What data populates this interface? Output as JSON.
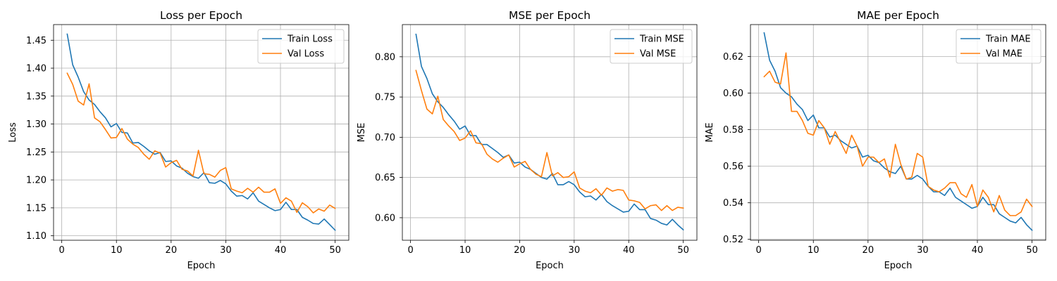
{
  "colors": {
    "train": "#1f77b4",
    "val": "#ff7f0e",
    "grid": "#b0b0b0"
  },
  "chart_data": [
    {
      "type": "line",
      "title": "Loss per Epoch",
      "xlabel": "Epoch",
      "ylabel": "Loss",
      "xlim": [
        -1.5,
        52.5
      ],
      "ylim": [
        1.092,
        1.478
      ],
      "xticks": [
        0,
        10,
        20,
        30,
        40,
        50
      ],
      "yticks": [
        1.1,
        1.15,
        1.2,
        1.25,
        1.3,
        1.35,
        1.4,
        1.45
      ],
      "ytick_labels": [
        "1.10",
        "1.15",
        "1.20",
        "1.25",
        "1.30",
        "1.35",
        "1.40",
        "1.45"
      ],
      "grid": true,
      "legend": "upper-right",
      "x": [
        1,
        2,
        3,
        4,
        5,
        6,
        7,
        8,
        9,
        10,
        11,
        12,
        13,
        14,
        15,
        16,
        17,
        18,
        19,
        20,
        21,
        22,
        23,
        24,
        25,
        26,
        27,
        28,
        29,
        30,
        31,
        32,
        33,
        34,
        35,
        36,
        37,
        38,
        39,
        40,
        41,
        42,
        43,
        44,
        45,
        46,
        47,
        48,
        49,
        50
      ],
      "series": [
        {
          "name": "Train Loss",
          "color_key": "train",
          "values": [
            1.461,
            1.406,
            1.384,
            1.358,
            1.343,
            1.335,
            1.322,
            1.311,
            1.295,
            1.301,
            1.285,
            1.284,
            1.266,
            1.267,
            1.26,
            1.252,
            1.246,
            1.249,
            1.233,
            1.234,
            1.225,
            1.221,
            1.212,
            1.206,
            1.203,
            1.213,
            1.195,
            1.194,
            1.199,
            1.193,
            1.18,
            1.171,
            1.172,
            1.166,
            1.177,
            1.162,
            1.156,
            1.15,
            1.145,
            1.147,
            1.16,
            1.147,
            1.147,
            1.133,
            1.128,
            1.122,
            1.121,
            1.13,
            1.12,
            1.11
          ]
        },
        {
          "name": "Val Loss",
          "color_key": "val",
          "values": [
            1.391,
            1.371,
            1.341,
            1.334,
            1.372,
            1.311,
            1.304,
            1.29,
            1.275,
            1.276,
            1.292,
            1.273,
            1.264,
            1.258,
            1.246,
            1.237,
            1.252,
            1.248,
            1.223,
            1.231,
            1.235,
            1.219,
            1.216,
            1.207,
            1.253,
            1.211,
            1.21,
            1.205,
            1.217,
            1.222,
            1.184,
            1.18,
            1.177,
            1.185,
            1.178,
            1.187,
            1.178,
            1.178,
            1.184,
            1.158,
            1.168,
            1.162,
            1.142,
            1.159,
            1.152,
            1.141,
            1.148,
            1.144,
            1.155,
            1.149
          ]
        }
      ]
    },
    {
      "type": "line",
      "title": "MSE per Epoch",
      "xlabel": "Epoch",
      "ylabel": "MSE",
      "xlim": [
        -1.5,
        52.5
      ],
      "ylim": [
        0.572,
        0.84
      ],
      "xticks": [
        0,
        10,
        20,
        30,
        40,
        50
      ],
      "yticks": [
        0.6,
        0.65,
        0.7,
        0.75,
        0.8
      ],
      "ytick_labels": [
        "0.60",
        "0.65",
        "0.70",
        "0.75",
        "0.80"
      ],
      "grid": true,
      "legend": "upper-right",
      "x": [
        1,
        2,
        3,
        4,
        5,
        6,
        7,
        8,
        9,
        10,
        11,
        12,
        13,
        14,
        15,
        16,
        17,
        18,
        19,
        20,
        21,
        22,
        23,
        24,
        25,
        26,
        27,
        28,
        29,
        30,
        31,
        32,
        33,
        34,
        35,
        36,
        37,
        38,
        39,
        40,
        41,
        42,
        43,
        44,
        45,
        46,
        47,
        48,
        49,
        50
      ],
      "series": [
        {
          "name": "Train MSE",
          "color_key": "train",
          "values": [
            0.828,
            0.788,
            0.773,
            0.754,
            0.744,
            0.737,
            0.728,
            0.72,
            0.71,
            0.714,
            0.702,
            0.702,
            0.691,
            0.691,
            0.686,
            0.681,
            0.675,
            0.678,
            0.668,
            0.669,
            0.663,
            0.66,
            0.655,
            0.65,
            0.648,
            0.655,
            0.641,
            0.641,
            0.645,
            0.641,
            0.632,
            0.626,
            0.627,
            0.622,
            0.629,
            0.62,
            0.615,
            0.611,
            0.607,
            0.608,
            0.617,
            0.61,
            0.61,
            0.599,
            0.597,
            0.593,
            0.591,
            0.598,
            0.591,
            0.585
          ]
        },
        {
          "name": "Val MSE",
          "color_key": "val",
          "values": [
            0.783,
            0.758,
            0.735,
            0.729,
            0.751,
            0.722,
            0.714,
            0.707,
            0.696,
            0.699,
            0.708,
            0.693,
            0.692,
            0.679,
            0.673,
            0.669,
            0.674,
            0.678,
            0.663,
            0.667,
            0.67,
            0.66,
            0.654,
            0.651,
            0.681,
            0.652,
            0.656,
            0.65,
            0.651,
            0.657,
            0.637,
            0.633,
            0.631,
            0.636,
            0.628,
            0.637,
            0.633,
            0.635,
            0.634,
            0.622,
            0.621,
            0.619,
            0.611,
            0.615,
            0.616,
            0.609,
            0.615,
            0.609,
            0.613,
            0.612
          ]
        }
      ]
    },
    {
      "type": "line",
      "title": "MAE per Epoch",
      "xlabel": "Epoch",
      "ylabel": "MAE",
      "xlim": [
        -1.5,
        52.5
      ],
      "ylim": [
        0.5195,
        0.6375
      ],
      "xticks": [
        0,
        10,
        20,
        30,
        40,
        50
      ],
      "yticks": [
        0.52,
        0.54,
        0.56,
        0.58,
        0.6,
        0.62
      ],
      "ytick_labels": [
        "0.52",
        "0.54",
        "0.56",
        "0.58",
        "0.60",
        "0.62"
      ],
      "grid": true,
      "legend": "upper-right",
      "x": [
        1,
        2,
        3,
        4,
        5,
        6,
        7,
        8,
        9,
        10,
        11,
        12,
        13,
        14,
        15,
        16,
        17,
        18,
        19,
        20,
        21,
        22,
        23,
        24,
        25,
        26,
        27,
        28,
        29,
        30,
        31,
        32,
        33,
        34,
        35,
        36,
        37,
        38,
        39,
        40,
        41,
        42,
        43,
        44,
        45,
        46,
        47,
        48,
        49,
        50
      ],
      "series": [
        {
          "name": "Train MAE",
          "color_key": "train",
          "values": [
            0.633,
            0.618,
            0.612,
            0.603,
            0.6,
            0.598,
            0.594,
            0.591,
            0.585,
            0.588,
            0.581,
            0.581,
            0.576,
            0.577,
            0.574,
            0.572,
            0.57,
            0.571,
            0.565,
            0.566,
            0.563,
            0.562,
            0.559,
            0.557,
            0.556,
            0.56,
            0.553,
            0.553,
            0.555,
            0.553,
            0.549,
            0.546,
            0.546,
            0.544,
            0.548,
            0.543,
            0.541,
            0.539,
            0.537,
            0.538,
            0.543,
            0.539,
            0.539,
            0.534,
            0.532,
            0.53,
            0.529,
            0.532,
            0.528,
            0.525
          ]
        },
        {
          "name": "Val MAE",
          "color_key": "val",
          "values": [
            0.609,
            0.612,
            0.606,
            0.605,
            0.622,
            0.59,
            0.59,
            0.585,
            0.578,
            0.577,
            0.585,
            0.581,
            0.572,
            0.579,
            0.573,
            0.567,
            0.577,
            0.571,
            0.56,
            0.565,
            0.565,
            0.562,
            0.564,
            0.554,
            0.572,
            0.561,
            0.553,
            0.554,
            0.567,
            0.565,
            0.549,
            0.547,
            0.546,
            0.548,
            0.551,
            0.551,
            0.545,
            0.543,
            0.55,
            0.538,
            0.547,
            0.543,
            0.535,
            0.544,
            0.536,
            0.533,
            0.533,
            0.535,
            0.542,
            0.538
          ]
        }
      ]
    }
  ]
}
